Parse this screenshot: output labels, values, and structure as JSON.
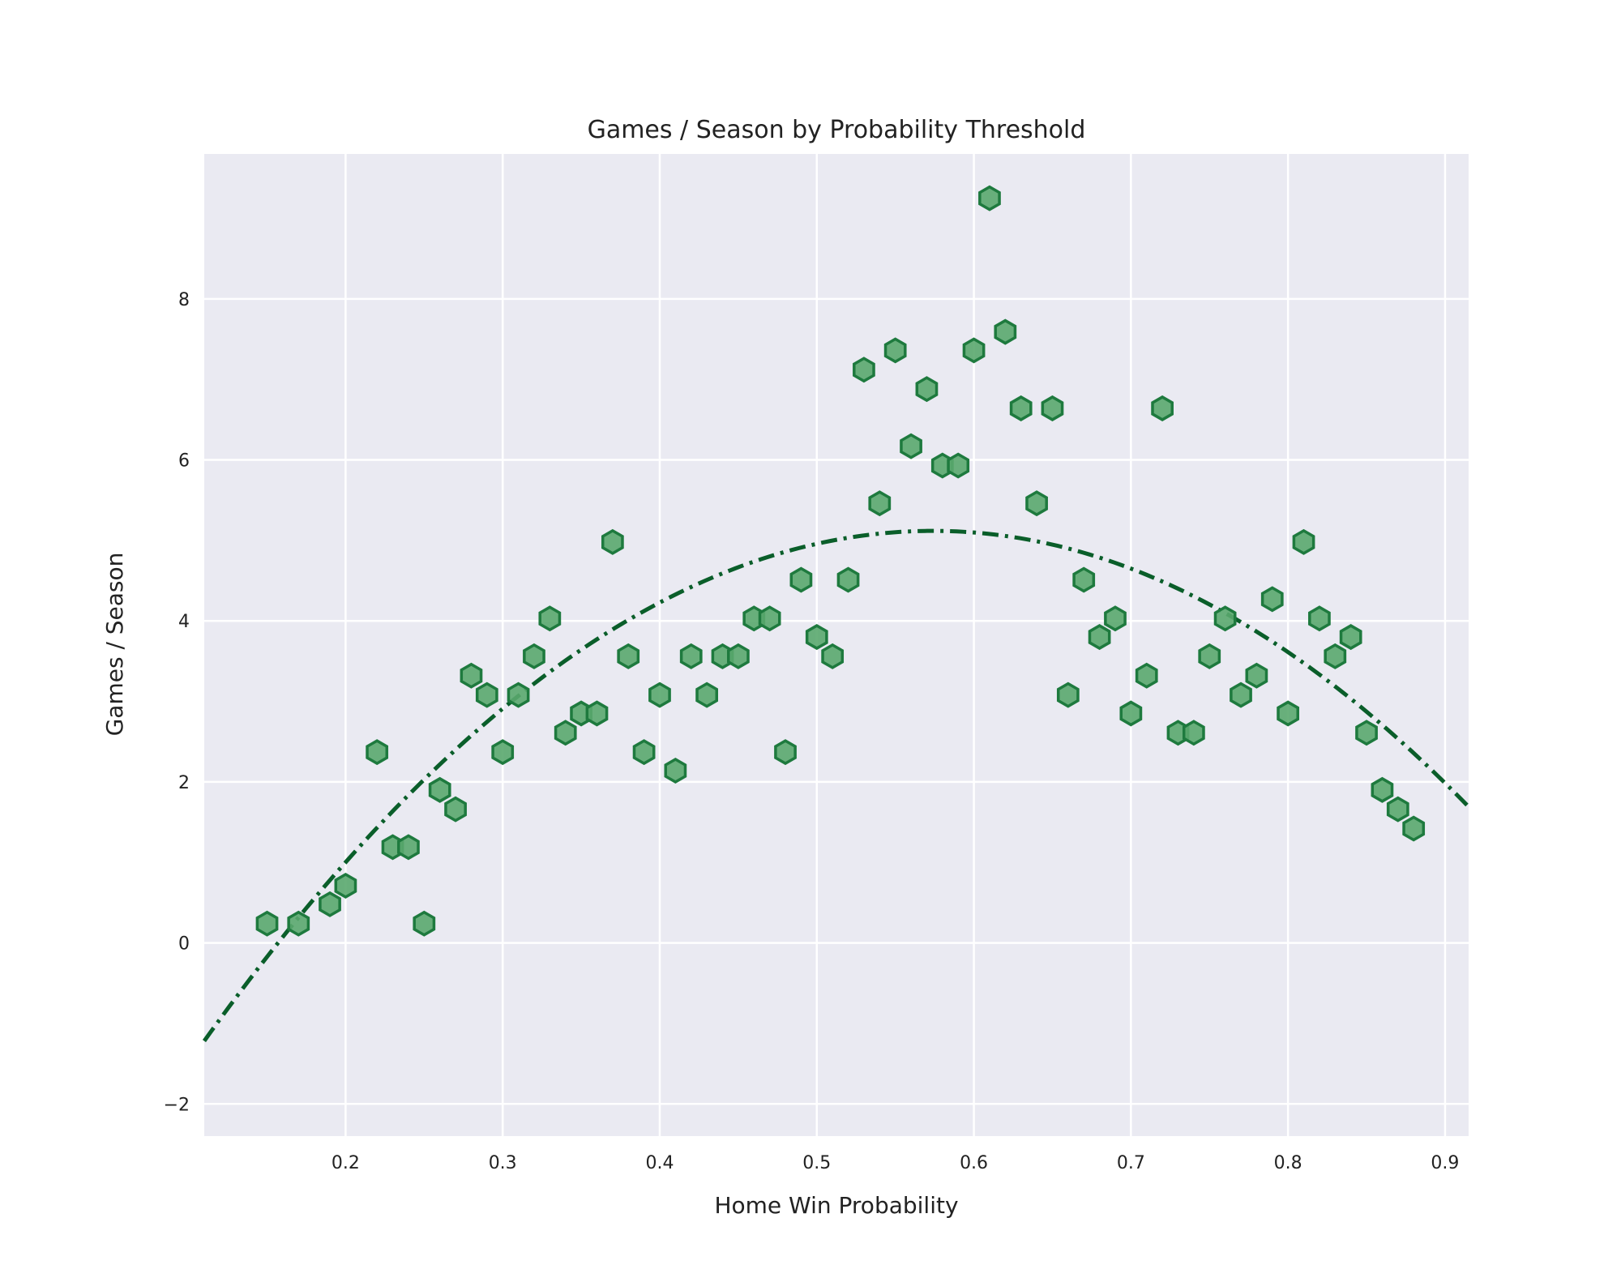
{
  "chart_data": {
    "type": "scatter",
    "title": "Games / Season by Probability Threshold",
    "xlabel": "Home Win Probability",
    "ylabel": "Games / Season",
    "xlim": [
      0.11,
      0.915
    ],
    "ylim": [
      -2.4,
      9.8
    ],
    "xticks": [
      0.2,
      0.3,
      0.4,
      0.5,
      0.6,
      0.7,
      0.8,
      0.9
    ],
    "xtick_labels": [
      "0.2",
      "0.3",
      "0.4",
      "0.5",
      "0.6",
      "0.7",
      "0.8",
      "0.9"
    ],
    "yticks": [
      -2,
      0,
      2,
      4,
      6,
      8
    ],
    "ytick_labels": [
      "−2",
      "0",
      "2",
      "4",
      "6",
      "8"
    ],
    "grid": true,
    "background": "#eaeaf2",
    "marker": "hexagon",
    "marker_fill": "#5aa86e",
    "marker_edge": "#1e7a3e",
    "fit_color": "#0a5e2a",
    "fit_style": "dash-dot",
    "fit_coefficients": {
      "a": -29.45,
      "b": 33.8,
      "c": -4.58
    },
    "points": [
      {
        "x": 0.15,
        "y": 0.24
      },
      {
        "x": 0.17,
        "y": 0.24
      },
      {
        "x": 0.19,
        "y": 0.48
      },
      {
        "x": 0.2,
        "y": 0.71
      },
      {
        "x": 0.22,
        "y": 2.37
      },
      {
        "x": 0.23,
        "y": 1.19
      },
      {
        "x": 0.24,
        "y": 1.19
      },
      {
        "x": 0.25,
        "y": 0.24
      },
      {
        "x": 0.26,
        "y": 1.9
      },
      {
        "x": 0.27,
        "y": 1.66
      },
      {
        "x": 0.28,
        "y": 3.32
      },
      {
        "x": 0.29,
        "y": 3.08
      },
      {
        "x": 0.3,
        "y": 2.37
      },
      {
        "x": 0.31,
        "y": 3.08
      },
      {
        "x": 0.32,
        "y": 3.56
      },
      {
        "x": 0.33,
        "y": 4.03
      },
      {
        "x": 0.34,
        "y": 2.61
      },
      {
        "x": 0.35,
        "y": 2.85
      },
      {
        "x": 0.36,
        "y": 2.85
      },
      {
        "x": 0.37,
        "y": 4.98
      },
      {
        "x": 0.38,
        "y": 3.56
      },
      {
        "x": 0.39,
        "y": 2.37
      },
      {
        "x": 0.4,
        "y": 3.08
      },
      {
        "x": 0.41,
        "y": 2.14
      },
      {
        "x": 0.42,
        "y": 3.56
      },
      {
        "x": 0.43,
        "y": 3.08
      },
      {
        "x": 0.44,
        "y": 3.56
      },
      {
        "x": 0.45,
        "y": 3.56
      },
      {
        "x": 0.46,
        "y": 4.03
      },
      {
        "x": 0.47,
        "y": 4.03
      },
      {
        "x": 0.48,
        "y": 2.37
      },
      {
        "x": 0.49,
        "y": 4.51
      },
      {
        "x": 0.5,
        "y": 3.8
      },
      {
        "x": 0.51,
        "y": 3.56
      },
      {
        "x": 0.52,
        "y": 4.51
      },
      {
        "x": 0.53,
        "y": 7.12
      },
      {
        "x": 0.54,
        "y": 5.46
      },
      {
        "x": 0.55,
        "y": 7.36
      },
      {
        "x": 0.56,
        "y": 6.17
      },
      {
        "x": 0.57,
        "y": 6.88
      },
      {
        "x": 0.58,
        "y": 5.93
      },
      {
        "x": 0.59,
        "y": 5.93
      },
      {
        "x": 0.6,
        "y": 7.36
      },
      {
        "x": 0.61,
        "y": 9.25
      },
      {
        "x": 0.62,
        "y": 7.59
      },
      {
        "x": 0.63,
        "y": 6.64
      },
      {
        "x": 0.64,
        "y": 5.46
      },
      {
        "x": 0.65,
        "y": 6.64
      },
      {
        "x": 0.66,
        "y": 3.08
      },
      {
        "x": 0.67,
        "y": 4.51
      },
      {
        "x": 0.68,
        "y": 3.8
      },
      {
        "x": 0.69,
        "y": 4.03
      },
      {
        "x": 0.7,
        "y": 2.85
      },
      {
        "x": 0.71,
        "y": 3.32
      },
      {
        "x": 0.72,
        "y": 6.64
      },
      {
        "x": 0.73,
        "y": 2.61
      },
      {
        "x": 0.74,
        "y": 2.61
      },
      {
        "x": 0.75,
        "y": 3.56
      },
      {
        "x": 0.76,
        "y": 4.03
      },
      {
        "x": 0.77,
        "y": 3.08
      },
      {
        "x": 0.78,
        "y": 3.32
      },
      {
        "x": 0.79,
        "y": 4.27
      },
      {
        "x": 0.8,
        "y": 2.85
      },
      {
        "x": 0.81,
        "y": 4.98
      },
      {
        "x": 0.82,
        "y": 4.03
      },
      {
        "x": 0.83,
        "y": 3.56
      },
      {
        "x": 0.84,
        "y": 3.8
      },
      {
        "x": 0.85,
        "y": 2.61
      },
      {
        "x": 0.86,
        "y": 1.9
      },
      {
        "x": 0.87,
        "y": 1.66
      },
      {
        "x": 0.88,
        "y": 1.42
      }
    ]
  }
}
